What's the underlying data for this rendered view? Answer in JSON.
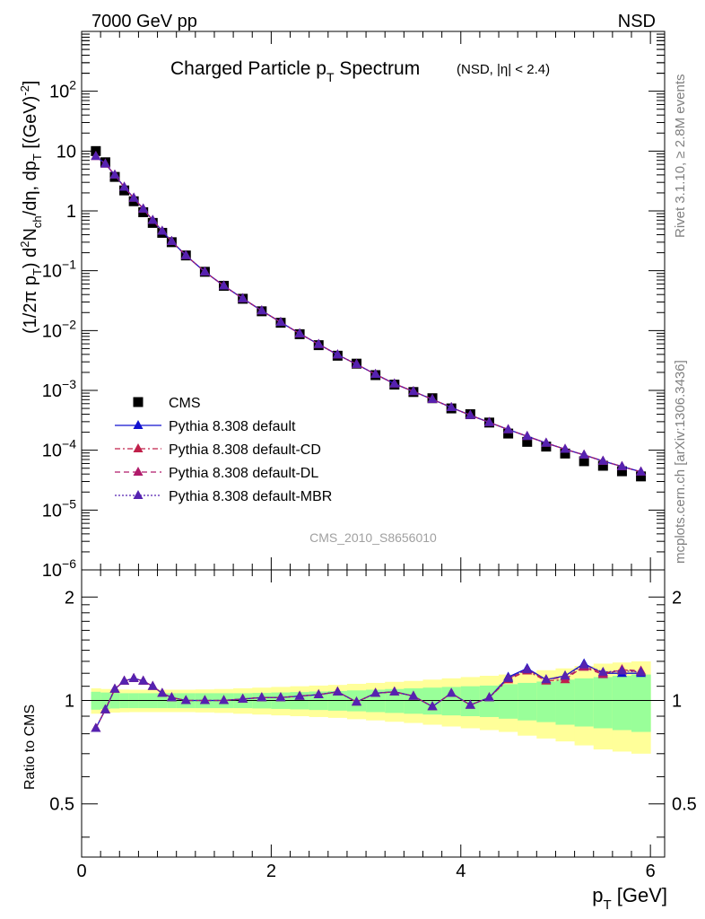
{
  "header": {
    "left": "7000 GeV pp",
    "right": "NSD"
  },
  "title": {
    "main": "Charged Particle p",
    "main_sub": "T",
    "main_tail": " Spectrum",
    "qualifier": "(NSD, |η| < 2.4)"
  },
  "analysis_label": "CMS_2010_S8656010",
  "side_text": {
    "rivet": "Rivet 3.1.10, ≥ 2.8M events",
    "mcplots": "mcplots.cern.ch [arXiv:1306.3436]"
  },
  "legend": {
    "entries": [
      "CMS",
      "Pythia 8.308 default",
      "Pythia 8.308 default-CD",
      "Pythia 8.308 default-DL",
      "Pythia 8.308 default-MBR"
    ]
  },
  "axes": {
    "ylabel_top": "(1/2π p_T) d²N_ch/dη, dp_T [(GeV)⁻²]",
    "ylabel_bottom": "Ratio to CMS",
    "xlabel": "p_T [GeV]"
  },
  "colors": {
    "data": "#000000",
    "default": "#1010d0",
    "cd": "#c0204a",
    "dl": "#b01a6a",
    "mbr": "#5522b0",
    "band_inner": "#99ff99",
    "band_outer": "#ffff99"
  },
  "chart_data": [
    {
      "type": "scatter",
      "panel": "main",
      "yscale": "log",
      "xlim": [
        0,
        6.15
      ],
      "ylim": [
        1e-06,
        1000
      ],
      "x_ticks": [
        0,
        2,
        4,
        6
      ],
      "y_ticks": [
        "10^-6",
        "10^-5",
        "10^-4",
        "10^-3",
        "10^-2",
        "10^-1",
        "1",
        "10",
        "10^2"
      ],
      "x": [
        0.15,
        0.25,
        0.35,
        0.45,
        0.55,
        0.65,
        0.75,
        0.85,
        0.95,
        1.1,
        1.3,
        1.5,
        1.7,
        1.9,
        2.1,
        2.3,
        2.5,
        2.7,
        2.9,
        3.1,
        3.3,
        3.5,
        3.7,
        3.9,
        4.1,
        4.3,
        4.5,
        4.7,
        4.9,
        5.1,
        5.3,
        5.5,
        5.7,
        5.9
      ],
      "series": [
        {
          "name": "CMS",
          "values": [
            10.0,
            6.5,
            3.7,
            2.2,
            1.45,
            0.95,
            0.63,
            0.43,
            0.3,
            0.18,
            0.096,
            0.056,
            0.034,
            0.021,
            0.0135,
            0.0087,
            0.0057,
            0.0038,
            0.0028,
            0.0018,
            0.00125,
            0.00094,
            0.00074,
            0.0005,
            0.0004,
            0.00029,
            0.00019,
            0.000138,
            0.000115,
            8.8e-05,
            6.55e-05,
            5.5e-05,
            4.45e-05,
            3.65e-05
          ]
        },
        {
          "name": "Pythia 8.308 default",
          "values": [
            8.2,
            6.1,
            4.0,
            2.5,
            1.64,
            1.08,
            0.7,
            0.46,
            0.31,
            0.18,
            0.096,
            0.056,
            0.0344,
            0.0215,
            0.0138,
            0.0089,
            0.0059,
            0.00395,
            0.00273,
            0.00186,
            0.00129,
            0.00096,
            0.00071,
            0.000518,
            0.000385,
            0.000292,
            0.000222,
            0.000171,
            0.000132,
            0.000104,
            8.35e-05,
            6.6e-05,
            5.35e-05,
            4.35e-05
          ]
        },
        {
          "name": "Pythia 8.308 default-CD",
          "values": [
            8.2,
            6.1,
            4.0,
            2.5,
            1.64,
            1.08,
            0.7,
            0.46,
            0.31,
            0.18,
            0.096,
            0.056,
            0.0344,
            0.0215,
            0.0138,
            0.0089,
            0.0059,
            0.00395,
            0.00273,
            0.00186,
            0.00129,
            0.00096,
            0.00071,
            0.000518,
            0.000385,
            0.000292,
            0.000222,
            0.000171,
            0.000132,
            0.000104,
            8.35e-05,
            6.6e-05,
            5.35e-05,
            4.35e-05
          ]
        },
        {
          "name": "Pythia 8.308 default-DL",
          "values": [
            8.2,
            6.1,
            4.0,
            2.5,
            1.64,
            1.08,
            0.7,
            0.46,
            0.31,
            0.18,
            0.096,
            0.056,
            0.0344,
            0.0215,
            0.0138,
            0.0089,
            0.0059,
            0.00395,
            0.00273,
            0.00186,
            0.00129,
            0.00096,
            0.00071,
            0.000518,
            0.000385,
            0.000292,
            0.000222,
            0.000171,
            0.000132,
            0.000104,
            8.35e-05,
            6.6e-05,
            5.35e-05,
            4.35e-05
          ]
        },
        {
          "name": "Pythia 8.308 default-MBR",
          "values": [
            8.2,
            6.1,
            4.0,
            2.5,
            1.64,
            1.08,
            0.7,
            0.46,
            0.31,
            0.18,
            0.096,
            0.056,
            0.0344,
            0.0215,
            0.0138,
            0.0089,
            0.0059,
            0.00395,
            0.00273,
            0.00186,
            0.00129,
            0.00096,
            0.00071,
            0.000518,
            0.000385,
            0.000292,
            0.000222,
            0.000171,
            0.000132,
            0.000104,
            8.35e-05,
            6.6e-05,
            5.35e-05,
            4.35e-05
          ]
        }
      ]
    },
    {
      "type": "line",
      "panel": "ratio",
      "yscale": "log",
      "xlim": [
        0,
        6.15
      ],
      "ylim": [
        0.35,
        2.4
      ],
      "x_ticks": [
        0,
        2,
        4,
        6
      ],
      "y_ticks": [
        0.5,
        1,
        2
      ],
      "x": [
        0.15,
        0.25,
        0.35,
        0.45,
        0.55,
        0.65,
        0.75,
        0.85,
        0.95,
        1.1,
        1.3,
        1.5,
        1.7,
        1.9,
        2.1,
        2.3,
        2.5,
        2.7,
        2.9,
        3.1,
        3.3,
        3.5,
        3.7,
        3.9,
        4.1,
        4.3,
        4.5,
        4.7,
        4.9,
        5.1,
        5.3,
        5.5,
        5.7,
        5.9
      ],
      "band_edges": [
        0.1,
        0.2,
        0.3,
        0.4,
        0.5,
        0.6,
        0.7,
        0.8,
        0.9,
        1.0,
        1.2,
        1.4,
        1.6,
        1.8,
        2.0,
        2.2,
        2.4,
        2.6,
        2.8,
        3.0,
        3.2,
        3.4,
        3.6,
        3.8,
        4.0,
        4.2,
        4.4,
        4.6,
        4.8,
        5.0,
        5.2,
        5.4,
        5.6,
        5.8,
        6.0
      ],
      "band_inner": [
        0.06,
        0.055,
        0.052,
        0.05,
        0.05,
        0.05,
        0.05,
        0.05,
        0.05,
        0.05,
        0.05,
        0.05,
        0.05,
        0.052,
        0.055,
        0.058,
        0.062,
        0.066,
        0.07,
        0.075,
        0.08,
        0.085,
        0.09,
        0.095,
        0.1,
        0.105,
        0.115,
        0.125,
        0.135,
        0.15,
        0.16,
        0.17,
        0.18,
        0.19
      ],
      "band_outer": [
        0.085,
        0.08,
        0.078,
        0.076,
        0.075,
        0.075,
        0.075,
        0.075,
        0.075,
        0.075,
        0.077,
        0.08,
        0.085,
        0.09,
        0.095,
        0.1,
        0.105,
        0.11,
        0.118,
        0.125,
        0.133,
        0.14,
        0.15,
        0.16,
        0.17,
        0.18,
        0.19,
        0.21,
        0.225,
        0.24,
        0.26,
        0.28,
        0.29,
        0.3
      ],
      "series": [
        {
          "name": "Pythia 8.308 default",
          "values": [
            0.83,
            0.94,
            1.08,
            1.14,
            1.16,
            1.14,
            1.1,
            1.05,
            1.02,
            1.0,
            1.0,
            1.0,
            1.01,
            1.02,
            1.02,
            1.03,
            1.04,
            1.06,
            0.99,
            1.05,
            1.06,
            1.03,
            0.96,
            1.05,
            0.97,
            1.02,
            1.17,
            1.24,
            1.15,
            1.18,
            1.28,
            1.2,
            1.2,
            1.2
          ]
        },
        {
          "name": "Pythia 8.308 default-CD",
          "values": [
            0.83,
            0.94,
            1.08,
            1.14,
            1.16,
            1.14,
            1.1,
            1.05,
            1.02,
            1.0,
            1.0,
            1.0,
            1.01,
            1.02,
            1.02,
            1.03,
            1.04,
            1.06,
            0.99,
            1.05,
            1.06,
            1.03,
            0.96,
            1.05,
            0.97,
            1.02,
            1.15,
            1.22,
            1.14,
            1.15,
            1.26,
            1.2,
            1.23,
            1.21
          ]
        },
        {
          "name": "Pythia 8.308 default-DL",
          "values": [
            0.83,
            0.94,
            1.08,
            1.14,
            1.16,
            1.14,
            1.1,
            1.05,
            1.02,
            1.0,
            1.0,
            1.0,
            1.01,
            1.02,
            1.02,
            1.03,
            1.04,
            1.06,
            0.99,
            1.05,
            1.06,
            1.03,
            0.96,
            1.05,
            0.97,
            1.02,
            1.16,
            1.23,
            1.15,
            1.17,
            1.25,
            1.19,
            1.23,
            1.22
          ]
        },
        {
          "name": "Pythia 8.308 default-MBR",
          "values": [
            0.83,
            0.94,
            1.08,
            1.14,
            1.16,
            1.14,
            1.1,
            1.05,
            1.02,
            1.0,
            1.0,
            1.0,
            1.01,
            1.02,
            1.02,
            1.03,
            1.04,
            1.06,
            0.99,
            1.05,
            1.06,
            1.03,
            0.96,
            1.05,
            0.97,
            1.02,
            1.16,
            1.23,
            1.15,
            1.18,
            1.27,
            1.21,
            1.22,
            1.21
          ]
        }
      ]
    }
  ]
}
